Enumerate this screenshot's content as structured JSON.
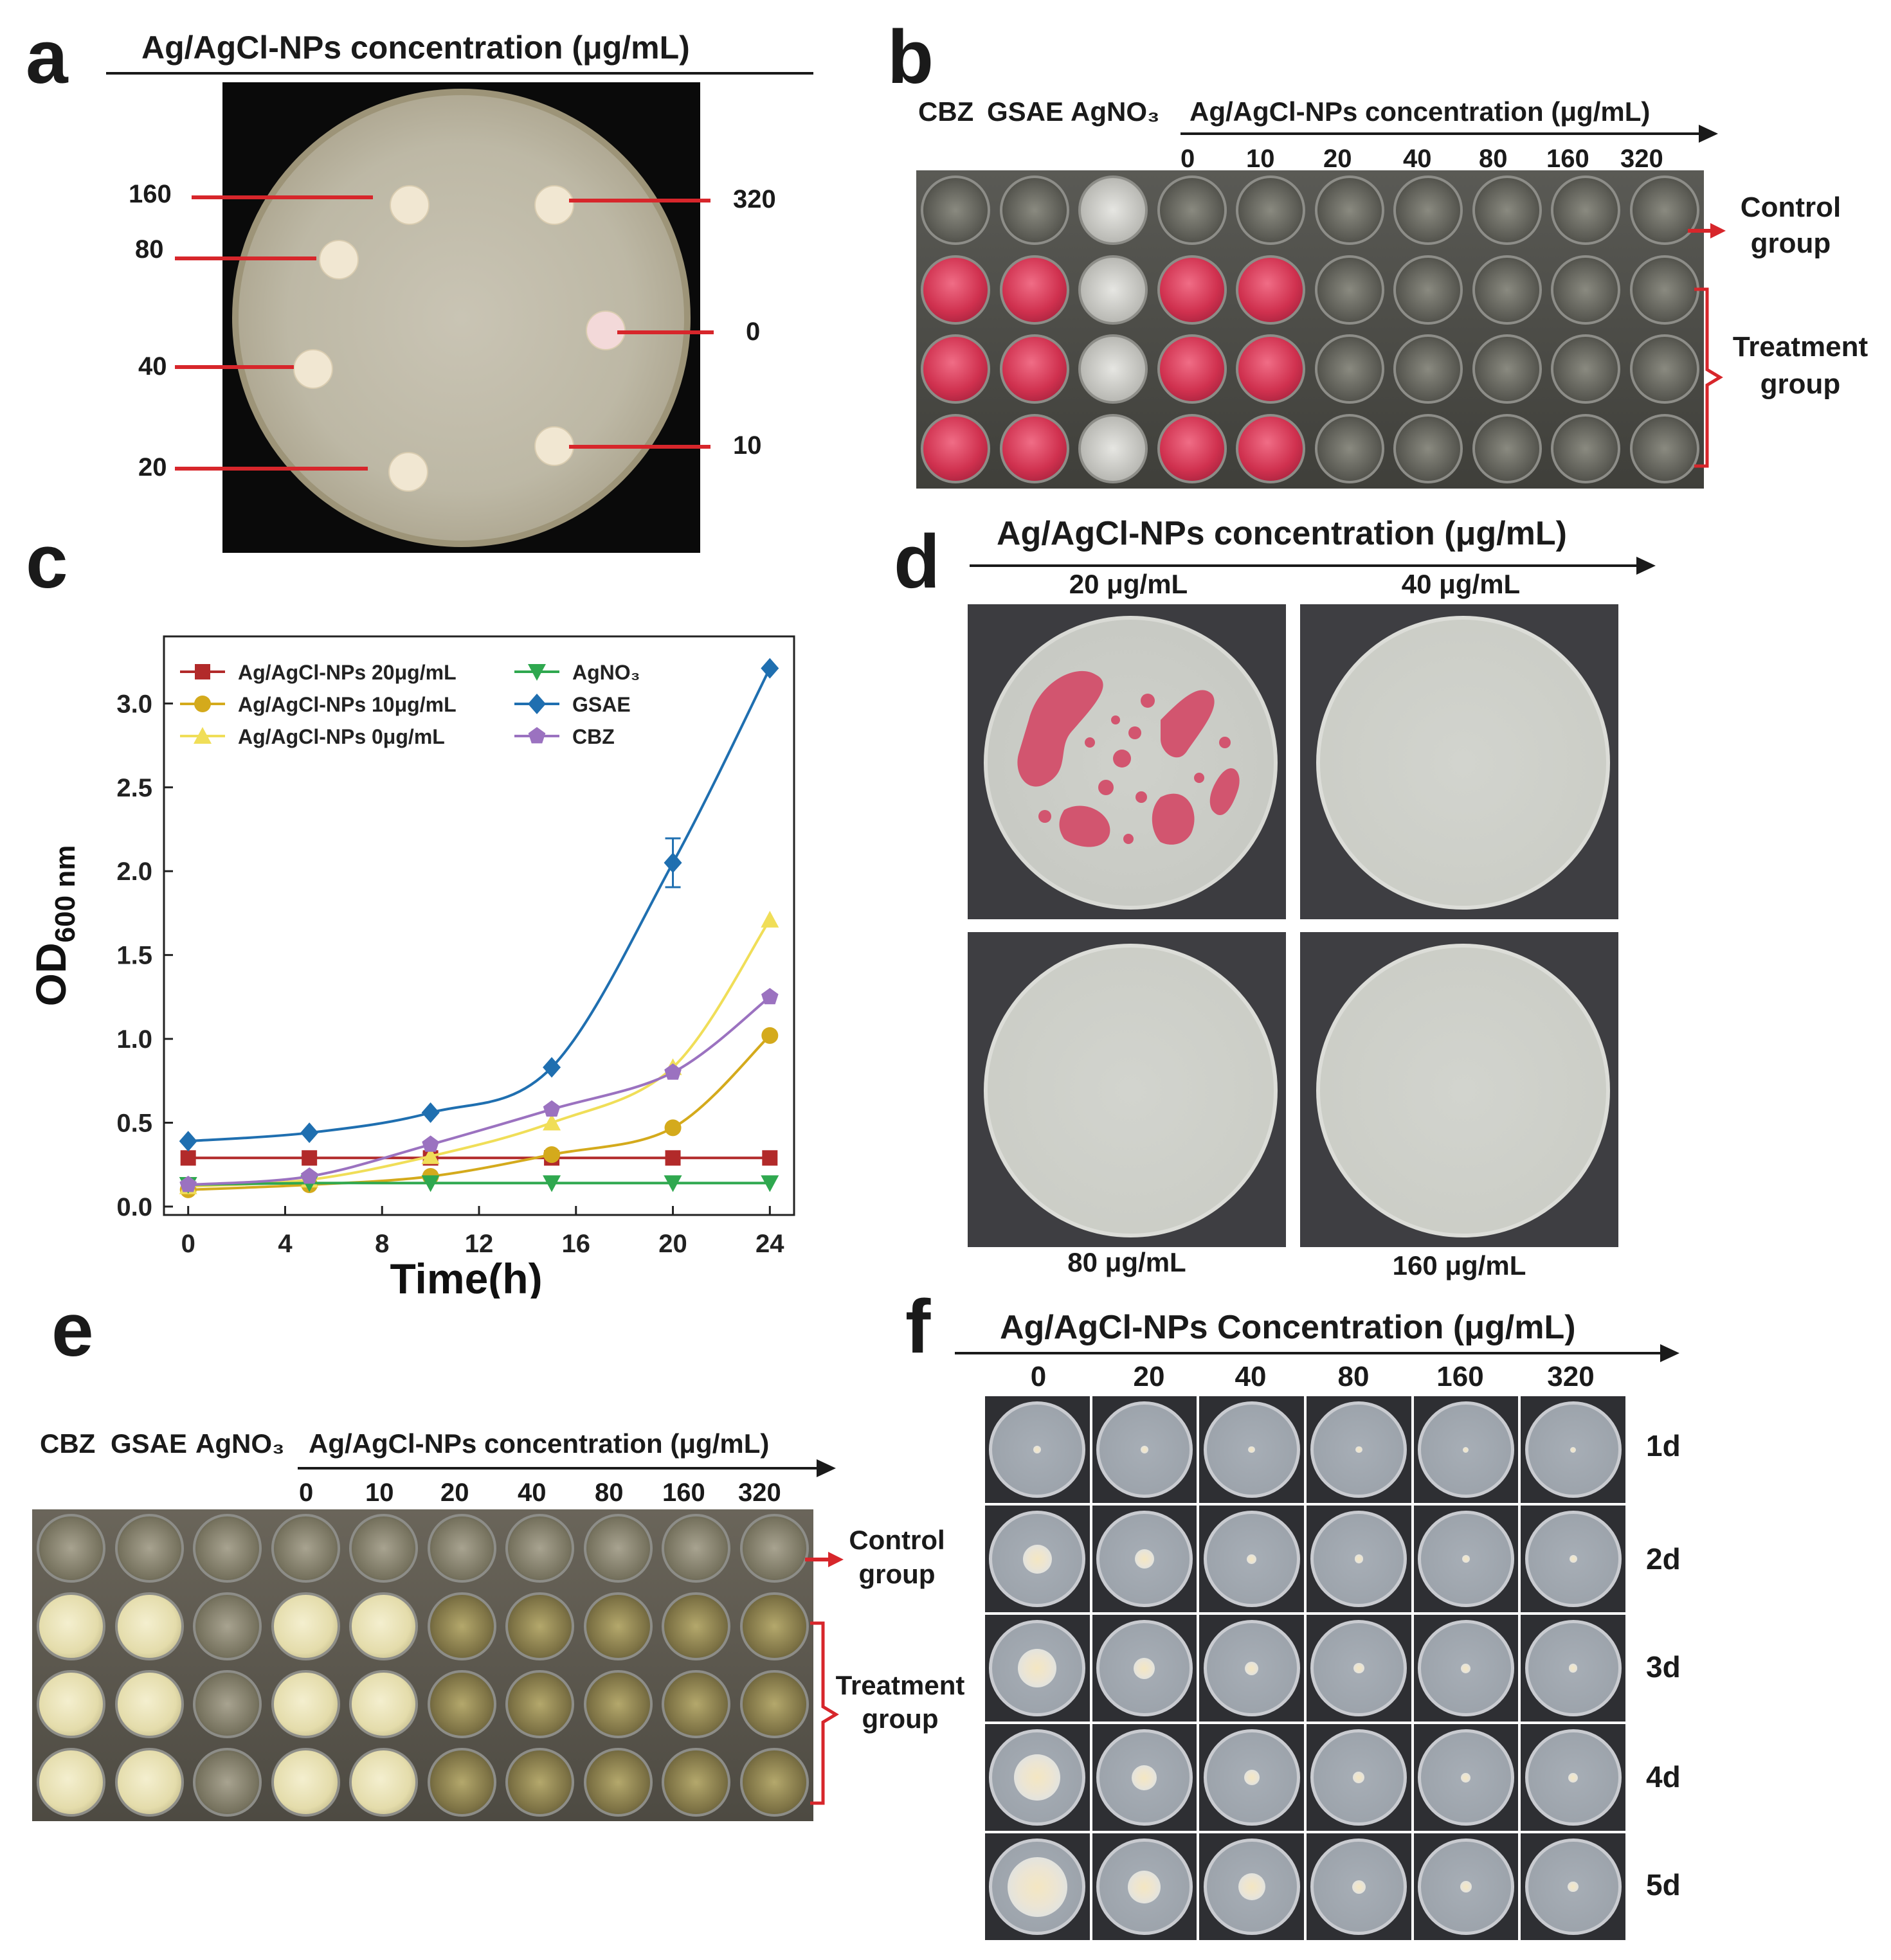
{
  "panels": {
    "a": {
      "label": "a",
      "header": "Ag/AgCl-NPs concentration (μg/mL)",
      "disc_labels": [
        "160",
        "320",
        "80",
        "0",
        "40",
        "20",
        "10"
      ]
    },
    "b": {
      "label": "b",
      "col_names": [
        "CBZ",
        "GSAE",
        "AgNO₃"
      ],
      "header": "Ag/AgCl-NPs concentration (μg/mL)",
      "concentrations": [
        "0",
        "10",
        "20",
        "40",
        "80",
        "160",
        "320"
      ],
      "control_line1": "Control",
      "control_line2": "group",
      "treatment_line1": "Treatment",
      "treatment_line2": "group"
    },
    "c": {
      "label": "c"
    },
    "d": {
      "label": "d",
      "header": "Ag/AgCl-NPs concentration (μg/mL)",
      "plate_labels": [
        "20 μg/mL",
        "40 μg/mL",
        "80 μg/mL",
        "160 μg/mL"
      ]
    },
    "e": {
      "label": "e",
      "col_names": [
        "CBZ",
        "GSAE",
        "AgNO₃"
      ],
      "header": "Ag/AgCl-NPs concentration (μg/mL)",
      "concentrations": [
        "0",
        "10",
        "20",
        "40",
        "80",
        "160",
        "320"
      ],
      "control_line1": "Control",
      "control_line2": "group",
      "treatment_line1": "Treatment",
      "treatment_line2": "group"
    },
    "f": {
      "label": "f",
      "header": "Ag/AgCl-NPs Concentration (μg/mL)",
      "concentrations": [
        "0",
        "20",
        "40",
        "80",
        "160",
        "320"
      ],
      "days": [
        "1d",
        "2d",
        "3d",
        "4d",
        "5d"
      ]
    }
  },
  "colors": {
    "red_line": "#d7262b",
    "pink_well": "#d0314f",
    "yellow_well": "#e4dcab"
  },
  "chart_data": {
    "type": "line",
    "xlabel": "Time(h)",
    "ylabel_main": "OD",
    "ylabel_sub": "600 nm",
    "x": [
      0,
      5,
      10,
      15,
      20,
      24
    ],
    "xticks": [
      "0",
      "4",
      "8",
      "12",
      "16",
      "20",
      "24"
    ],
    "yticks": [
      "0.0",
      "0.5",
      "1.0",
      "1.5",
      "2.0",
      "2.5",
      "3.0"
    ],
    "xlim": [
      -1,
      25
    ],
    "ylim": [
      -0.05,
      3.4
    ],
    "legend_location": "top-left (two columns)",
    "series": [
      {
        "name": "Ag/AgCl-NPs 20μg/mL",
        "color": "#b22a2a",
        "marker": "square",
        "values": [
          0.29,
          0.29,
          0.29,
          0.29,
          0.29,
          0.29
        ]
      },
      {
        "name": "Ag/AgCl-NPs 10μg/mL",
        "color": "#d4aa1c",
        "marker": "circle",
        "values": [
          0.1,
          0.13,
          0.18,
          0.31,
          0.47,
          1.02
        ]
      },
      {
        "name": "Ag/AgCl-NPs  0μg/mL",
        "color": "#f0de58",
        "marker": "triangle-up",
        "values": [
          0.12,
          0.16,
          0.3,
          0.5,
          0.83,
          1.71
        ]
      },
      {
        "name": "AgNO₃",
        "color": "#2fa84f",
        "marker": "triangle-down",
        "values": [
          0.13,
          0.14,
          0.14,
          0.14,
          0.14,
          0.14
        ]
      },
      {
        "name": "GSAE",
        "color": "#1f6fb0",
        "marker": "diamond",
        "values": [
          0.39,
          0.44,
          0.56,
          0.83,
          2.05,
          3.21
        ]
      },
      {
        "name": "CBZ",
        "color": "#9b72c0",
        "marker": "pentagon",
        "values": [
          0.13,
          0.18,
          0.37,
          0.58,
          0.8,
          1.25
        ]
      }
    ]
  }
}
